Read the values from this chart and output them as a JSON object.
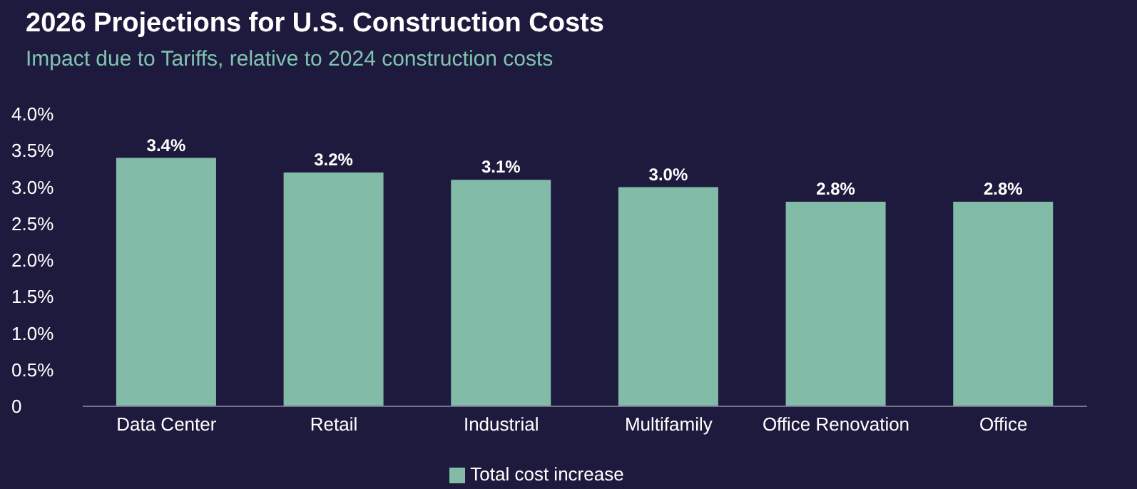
{
  "chart_data": {
    "type": "bar",
    "title": "2026 Projections for U.S. Construction Costs",
    "subtitle": "Impact due to Tariffs, relative to 2024 construction costs",
    "categories": [
      "Data Center",
      "Retail",
      "Industrial",
      "Multifamily",
      "Office Renovation",
      "Office"
    ],
    "series": [
      {
        "name": "Total cost increase",
        "color": "#82bca9",
        "values": [
          3.4,
          3.2,
          3.1,
          3.0,
          2.8,
          2.8
        ],
        "value_labels": [
          "3.4%",
          "3.2%",
          "3.1%",
          "3.0%",
          "2.8%",
          "2.8%"
        ]
      }
    ],
    "ylim": [
      0,
      4
    ],
    "yticks": [
      0,
      {
        "value": 0.5,
        "label": "0.5%"
      },
      {
        "value": 1,
        "label": "1.0%"
      },
      {
        "value": 1.5,
        "label": "1.5%"
      },
      {
        "value": 2,
        "label": "2.0%"
      },
      {
        "value": 2.5,
        "label": "2.5%"
      },
      {
        "value": 3,
        "label": "3.0%"
      },
      {
        "value": 3.5,
        "label": "3.5%"
      },
      {
        "value": 4,
        "label": "4.0%"
      }
    ],
    "grid": false,
    "legend": "bottom"
  }
}
